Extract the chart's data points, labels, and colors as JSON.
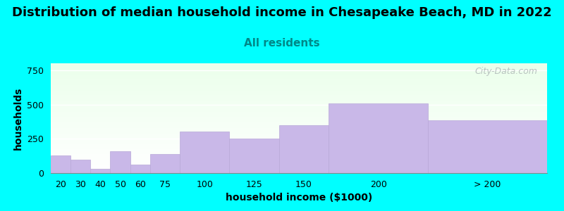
{
  "title": "Distribution of median household income in Chesapeake Beach, MD in 2022",
  "subtitle": "All residents",
  "xlabel": "household income ($1000)",
  "ylabel": "households",
  "background_color": "#00FFFF",
  "bar_color": "#c9b8e8",
  "bar_edge_color": "#b8a8d8",
  "categories": [
    "20",
    "30",
    "40",
    "50",
    "60",
    "75",
    "100",
    "125",
    "150",
    "200",
    "> 200"
  ],
  "values": [
    130,
    100,
    30,
    160,
    60,
    140,
    305,
    250,
    350,
    510,
    385
  ],
  "bin_lefts": [
    10,
    20,
    30,
    40,
    50,
    60,
    75,
    100,
    125,
    150,
    200
  ],
  "bin_rights": [
    20,
    30,
    40,
    50,
    60,
    75,
    100,
    125,
    150,
    200,
    260
  ],
  "xlim": [
    10,
    260
  ],
  "ylim": [
    0,
    800
  ],
  "yticks": [
    0,
    250,
    500,
    750
  ],
  "title_fontsize": 13,
  "subtitle_fontsize": 11,
  "axis_label_fontsize": 10,
  "tick_fontsize": 9,
  "watermark_text": "City-Data.com",
  "watermark_color": "#b0b8b8"
}
